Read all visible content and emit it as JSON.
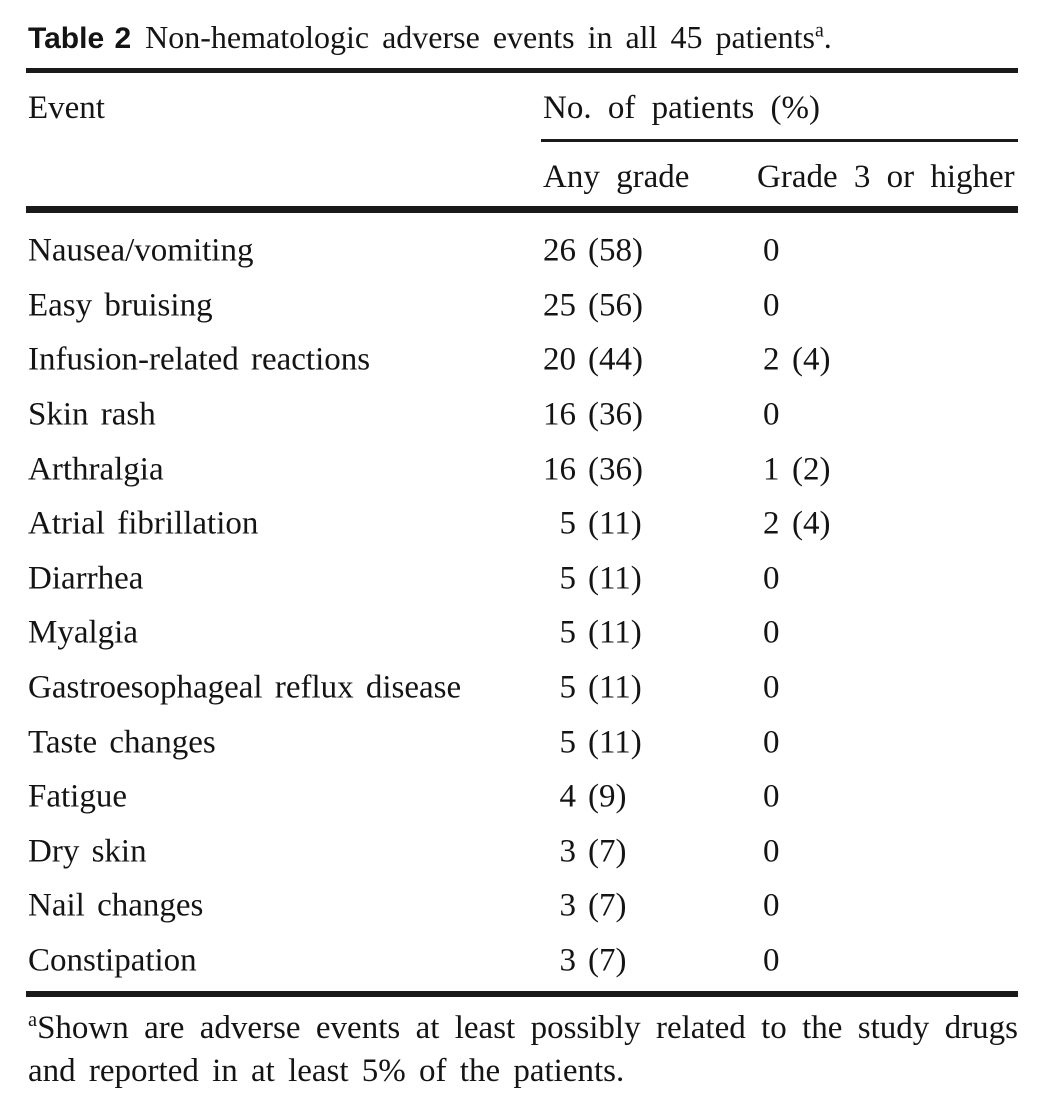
{
  "title": {
    "label": "Table 2",
    "text": "Non-hematologic adverse events in all 45 patients",
    "footnote_marker": "a",
    "suffix": "."
  },
  "table": {
    "col1_header": "Event",
    "group_header": "No. of patients (%)",
    "col2_header": "Any grade",
    "col3_header": "Grade 3 or higher",
    "rows": [
      {
        "event": "Nausea/vomiting",
        "any_n": "26",
        "any_pct": "(58)",
        "g3_n": "0",
        "g3_pct": ""
      },
      {
        "event": "Easy bruising",
        "any_n": "25",
        "any_pct": "(56)",
        "g3_n": "0",
        "g3_pct": ""
      },
      {
        "event": "Infusion-related reactions",
        "any_n": "20",
        "any_pct": "(44)",
        "g3_n": "2",
        "g3_pct": "(4)"
      },
      {
        "event": "Skin rash",
        "any_n": "16",
        "any_pct": "(36)",
        "g3_n": "0",
        "g3_pct": ""
      },
      {
        "event": "Arthralgia",
        "any_n": "16",
        "any_pct": "(36)",
        "g3_n": "1",
        "g3_pct": "(2)"
      },
      {
        "event": "Atrial fibrillation",
        "any_n": "5",
        "any_pct": "(11)",
        "g3_n": "2",
        "g3_pct": "(4)"
      },
      {
        "event": "Diarrhea",
        "any_n": "5",
        "any_pct": "(11)",
        "g3_n": "0",
        "g3_pct": ""
      },
      {
        "event": "Myalgia",
        "any_n": "5",
        "any_pct": "(11)",
        "g3_n": "0",
        "g3_pct": ""
      },
      {
        "event": "Gastroesophageal reflux disease",
        "any_n": "5",
        "any_pct": "(11)",
        "g3_n": "0",
        "g3_pct": ""
      },
      {
        "event": "Taste changes",
        "any_n": "5",
        "any_pct": "(11)",
        "g3_n": "0",
        "g3_pct": ""
      },
      {
        "event": "Fatigue",
        "any_n": "4",
        "any_pct": "(9)",
        "g3_n": "0",
        "g3_pct": ""
      },
      {
        "event": "Dry skin",
        "any_n": "3",
        "any_pct": "(7)",
        "g3_n": "0",
        "g3_pct": ""
      },
      {
        "event": "Nail changes",
        "any_n": "3",
        "any_pct": "(7)",
        "g3_n": "0",
        "g3_pct": ""
      },
      {
        "event": "Constipation",
        "any_n": "3",
        "any_pct": "(7)",
        "g3_n": "0",
        "g3_pct": ""
      }
    ]
  },
  "footnote": {
    "marker": "a",
    "line1": "Shown are adverse events at least possibly related to the study drugs",
    "line2": "and reported in at least 5% of the patients."
  },
  "colors": {
    "text": "#141414",
    "rule": "#1a1a1a",
    "background": "#ffffff"
  }
}
